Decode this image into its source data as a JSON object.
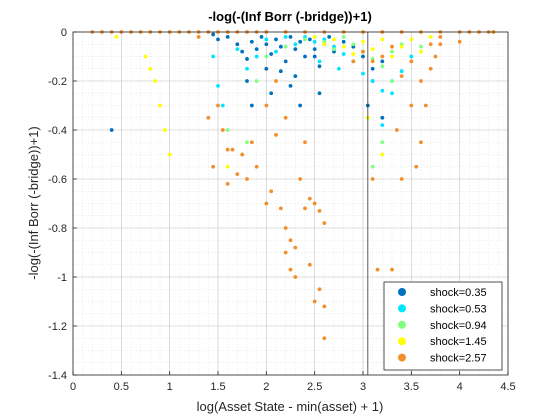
{
  "chart_data": {
    "type": "scatter",
    "title": "-log(-(Inf Borr (-bridge))+1)",
    "xlabel": "log(Asset State - min(asset) + 1)",
    "ylabel": "-log(-(Inf Borr (-bridge))+1)",
    "xlim": [
      0,
      4.5
    ],
    "ylim": [
      -1.4,
      0
    ],
    "x_ticks": [
      "0",
      "0.5",
      "1",
      "1.5",
      "2",
      "2.5",
      "3",
      "3.5",
      "4",
      "4.5"
    ],
    "y_ticks": [
      "0",
      "-0.2",
      "-0.4",
      "-0.6",
      "-0.8",
      "-1",
      "-1.2",
      "-1.4"
    ],
    "grid": true,
    "minor_grid": true,
    "legend_position": "bottom-right",
    "vline_x": 3.05,
    "series": [
      {
        "name": "shock=0.35",
        "color": "#0072BD",
        "points": [
          [
            0.4,
            -0.4
          ],
          [
            1.45,
            -0.01
          ],
          [
            1.5,
            -0.03
          ],
          [
            1.6,
            -0.02
          ],
          [
            1.7,
            -0.05
          ],
          [
            1.75,
            -0.08
          ],
          [
            1.8,
            -0.11
          ],
          [
            1.85,
            -0.04
          ],
          [
            1.9,
            -0.07
          ],
          [
            1.95,
            -0.02
          ],
          [
            2.0,
            -0.05
          ],
          [
            2.05,
            -0.09
          ],
          [
            2.1,
            -0.03
          ],
          [
            2.15,
            -0.06
          ],
          [
            2.2,
            -0.12
          ],
          [
            2.25,
            -0.02
          ],
          [
            2.3,
            -0.07
          ],
          [
            2.35,
            -0.04
          ],
          [
            2.4,
            -0.1
          ],
          [
            2.45,
            -0.03
          ],
          [
            2.5,
            -0.07
          ],
          [
            2.55,
            -0.14
          ],
          [
            2.6,
            -0.05
          ],
          [
            2.65,
            -0.02
          ],
          [
            2.7,
            -0.08
          ],
          [
            2.8,
            -0.04
          ],
          [
            2.9,
            -0.06
          ],
          [
            3.0,
            -0.1
          ],
          [
            3.1,
            -0.15
          ],
          [
            3.2,
            -0.12
          ],
          [
            1.8,
            -0.2
          ],
          [
            1.85,
            -0.3
          ],
          [
            2.0,
            -0.15
          ],
          [
            2.05,
            -0.25
          ],
          [
            2.3,
            -0.18
          ],
          [
            2.35,
            -0.3
          ],
          [
            2.5,
            -0.1
          ],
          [
            2.55,
            -0.25
          ],
          [
            3.05,
            -0.3
          ],
          [
            3.1,
            -0.2
          ],
          [
            3.2,
            -0.35
          ],
          [
            2.25,
            -0.22
          ],
          [
            2.15,
            -0.16
          ]
        ]
      },
      {
        "name": "shock=0.53",
        "color": "#00E5FF",
        "points": [
          [
            1.45,
            -0.1
          ],
          [
            1.5,
            -0.22
          ],
          [
            1.55,
            -0.3
          ],
          [
            1.7,
            -0.07
          ],
          [
            1.8,
            -0.15
          ],
          [
            1.9,
            -0.1
          ],
          [
            2.0,
            -0.03
          ],
          [
            2.1,
            -0.08
          ],
          [
            2.2,
            -0.02
          ],
          [
            2.3,
            -0.05
          ],
          [
            2.4,
            -0.02
          ],
          [
            2.5,
            -0.04
          ],
          [
            2.6,
            -0.03
          ],
          [
            2.7,
            -0.06
          ],
          [
            2.8,
            -0.09
          ],
          [
            2.9,
            -0.12
          ],
          [
            3.0,
            -0.17
          ],
          [
            3.1,
            -0.2
          ],
          [
            3.2,
            -0.24
          ],
          [
            3.3,
            -0.2
          ],
          [
            3.4,
            -0.16
          ],
          [
            3.5,
            -0.1
          ],
          [
            3.2,
            -0.38
          ],
          [
            3.3,
            -0.25
          ],
          [
            2.55,
            -0.12
          ],
          [
            2.75,
            -0.15
          ]
        ]
      },
      {
        "name": "shock=0.94",
        "color": "#80FF80",
        "points": [
          [
            1.6,
            -0.4
          ],
          [
            1.75,
            -0.5
          ],
          [
            1.8,
            -0.45
          ],
          [
            1.9,
            -0.2
          ],
          [
            2.0,
            -0.1
          ],
          [
            2.2,
            -0.06
          ],
          [
            2.4,
            -0.03
          ],
          [
            2.6,
            -0.04
          ],
          [
            2.7,
            -0.07
          ],
          [
            2.8,
            -0.02
          ],
          [
            2.9,
            -0.05
          ],
          [
            3.0,
            -0.08
          ],
          [
            3.1,
            -0.11
          ],
          [
            3.2,
            -0.14
          ],
          [
            3.3,
            -0.08
          ],
          [
            3.4,
            -0.05
          ],
          [
            3.5,
            -0.03
          ],
          [
            3.1,
            -0.55
          ],
          [
            3.2,
            -0.45
          ],
          [
            3.3,
            -0.2
          ],
          [
            3.6,
            -0.06
          ]
        ]
      },
      {
        "name": "shock=1.45",
        "color": "#FFFF00",
        "points": [
          [
            0.45,
            -0.02
          ],
          [
            0.75,
            -0.1
          ],
          [
            0.8,
            -0.15
          ],
          [
            0.85,
            -0.2
          ],
          [
            0.9,
            -0.3
          ],
          [
            0.95,
            -0.4
          ],
          [
            1.0,
            -0.5
          ],
          [
            1.6,
            -0.55
          ],
          [
            2.5,
            -0.02
          ],
          [
            2.6,
            -0.05
          ],
          [
            2.7,
            -0.03
          ],
          [
            2.8,
            -0.06
          ],
          [
            2.9,
            -0.09
          ],
          [
            3.0,
            -0.04
          ],
          [
            3.1,
            -0.07
          ],
          [
            3.2,
            -0.03
          ],
          [
            3.3,
            -0.1
          ],
          [
            3.4,
            -0.06
          ],
          [
            3.5,
            -0.03
          ],
          [
            3.6,
            -0.08
          ],
          [
            3.7,
            -0.02
          ],
          [
            3.2,
            -0.5
          ],
          [
            3.05,
            -0.35
          ]
        ]
      },
      {
        "name": "shock=2.57",
        "color": "#F28E2B",
        "points": [
          [
            0.2,
            0
          ],
          [
            0.3,
            0
          ],
          [
            0.4,
            0
          ],
          [
            0.5,
            0
          ],
          [
            0.6,
            0
          ],
          [
            0.7,
            0
          ],
          [
            0.8,
            0
          ],
          [
            0.9,
            0
          ],
          [
            1.0,
            0
          ],
          [
            1.1,
            0
          ],
          [
            1.2,
            0
          ],
          [
            1.3,
            0
          ],
          [
            1.4,
            0
          ],
          [
            1.5,
            0
          ],
          [
            1.6,
            0
          ],
          [
            1.7,
            0
          ],
          [
            1.8,
            0
          ],
          [
            1.9,
            0
          ],
          [
            2.0,
            0
          ],
          [
            2.2,
            0
          ],
          [
            2.4,
            0
          ],
          [
            2.6,
            0
          ],
          [
            2.8,
            0
          ],
          [
            3.0,
            0
          ],
          [
            3.2,
            0
          ],
          [
            3.4,
            0
          ],
          [
            3.6,
            0
          ],
          [
            3.8,
            0
          ],
          [
            4.0,
            0
          ],
          [
            4.1,
            0
          ],
          [
            4.2,
            0
          ],
          [
            4.3,
            0
          ],
          [
            4.35,
            0
          ],
          [
            1.3,
            -0.02
          ],
          [
            1.4,
            -0.35
          ],
          [
            1.45,
            -0.55
          ],
          [
            1.5,
            -0.3
          ],
          [
            1.55,
            -0.4
          ],
          [
            1.6,
            -0.62
          ],
          [
            1.65,
            -0.48
          ],
          [
            1.7,
            -0.58
          ],
          [
            1.75,
            -0.5
          ],
          [
            1.8,
            -0.6
          ],
          [
            1.85,
            -0.45
          ],
          [
            1.9,
            -0.55
          ],
          [
            2.0,
            -0.7
          ],
          [
            2.05,
            -0.65
          ],
          [
            2.1,
            -0.42
          ],
          [
            2.15,
            -0.72
          ],
          [
            2.2,
            -0.8
          ],
          [
            2.25,
            -0.85
          ],
          [
            2.3,
            -0.88
          ],
          [
            2.35,
            -0.6
          ],
          [
            2.4,
            -0.72
          ],
          [
            2.45,
            -0.68
          ],
          [
            2.5,
            -0.7
          ],
          [
            2.55,
            -0.73
          ],
          [
            2.6,
            -0.78
          ],
          [
            2.55,
            -1.05
          ],
          [
            2.6,
            -1.12
          ],
          [
            2.6,
            -1.25
          ],
          [
            2.5,
            -1.1
          ],
          [
            2.45,
            -0.95
          ],
          [
            2.2,
            -0.9
          ],
          [
            2.25,
            -0.97
          ],
          [
            2.3,
            -1.0
          ],
          [
            2.1,
            -0.2
          ],
          [
            2.0,
            -0.3
          ],
          [
            2.2,
            -0.35
          ],
          [
            2.4,
            -0.45
          ],
          [
            1.6,
            -0.48
          ],
          [
            3.1,
            -0.6
          ],
          [
            3.15,
            -0.97
          ],
          [
            3.3,
            -0.97
          ],
          [
            3.35,
            -0.4
          ],
          [
            3.4,
            -0.6
          ],
          [
            3.5,
            -0.3
          ],
          [
            3.55,
            -0.55
          ],
          [
            3.6,
            -0.2
          ],
          [
            3.65,
            -0.3
          ],
          [
            3.7,
            -0.15
          ],
          [
            3.75,
            -0.1
          ],
          [
            3.8,
            -0.05
          ],
          [
            3.5,
            -0.12
          ],
          [
            3.4,
            -0.18
          ],
          [
            3.3,
            -0.06
          ],
          [
            3.2,
            -0.1
          ],
          [
            3.1,
            -0.12
          ],
          [
            3.0,
            -0.08
          ],
          [
            2.9,
            -0.12
          ],
          [
            3.6,
            -0.45
          ],
          [
            3.7,
            -0.05
          ],
          [
            3.8,
            -0.02
          ],
          [
            4.0,
            -0.04
          ]
        ]
      }
    ]
  }
}
